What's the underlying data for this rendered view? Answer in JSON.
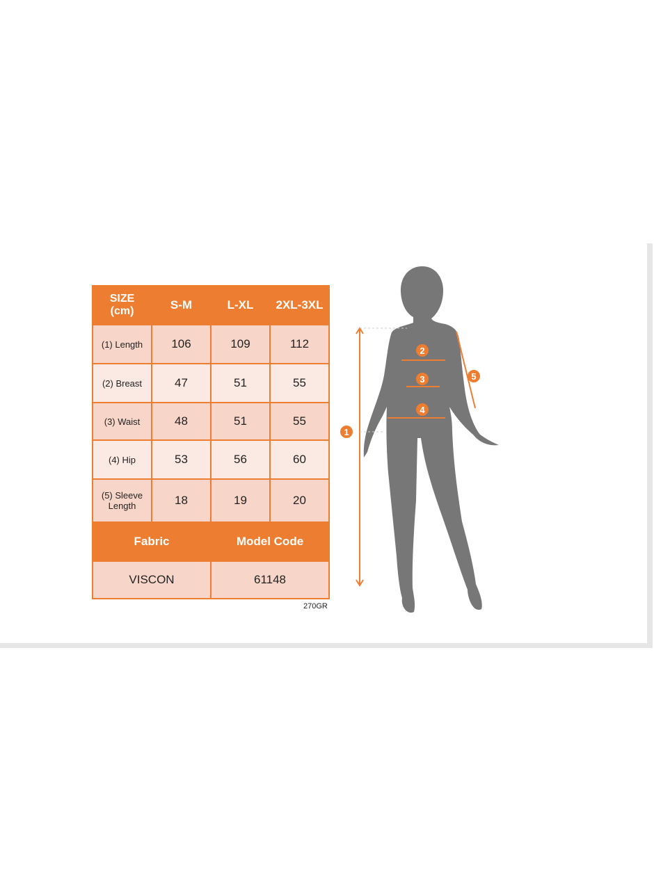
{
  "table": {
    "header": [
      "SIZE\n(cm)",
      "S-M",
      "L-XL",
      "2XL-3XL"
    ],
    "header_line1": "SIZE",
    "header_line2": "(cm)",
    "rows": [
      {
        "label": "(1) Length",
        "values": [
          "106",
          "109",
          "112"
        ]
      },
      {
        "label": "(2) Breast",
        "values": [
          "47",
          "51",
          "55"
        ]
      },
      {
        "label": "(3) Waist",
        "values": [
          "48",
          "51",
          "55"
        ]
      },
      {
        "label": "(4) Hip",
        "values": [
          "53",
          "56",
          "60"
        ]
      },
      {
        "label_line1": "(5) Sleeve",
        "label_line2": "Length",
        "values": [
          "18",
          "19",
          "20"
        ]
      }
    ],
    "footer_headers": [
      "Fabric",
      "Model Code"
    ],
    "footer_values": [
      "VISCON",
      "61148"
    ],
    "weight": "270GR"
  },
  "figure": {
    "markers": [
      "1",
      "2",
      "3",
      "4",
      "5"
    ]
  },
  "colors": {
    "accent": "#ed7d31",
    "row_dark": "#f8d5c9",
    "row_light": "#fbe9e3",
    "silhouette": "#777777"
  }
}
